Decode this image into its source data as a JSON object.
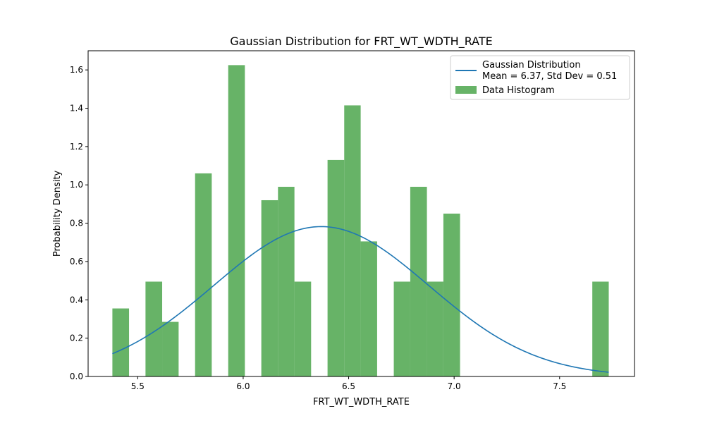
{
  "chart_data": {
    "type": "bar",
    "title": "Gaussian Distribution for FRT_WT_WDTH_RATE",
    "xlabel": "FRT_WT_WDTH_RATE",
    "ylabel": "Probability Density",
    "xlim": [
      5.265,
      7.855
    ],
    "ylim": [
      0,
      1.7
    ],
    "xticks": [
      5.5,
      6.0,
      6.5,
      7.0,
      7.5
    ],
    "xtick_labels": [
      "5.5",
      "6.0",
      "6.5",
      "7.0",
      "7.5"
    ],
    "yticks": [
      0.0,
      0.2,
      0.4,
      0.6,
      0.8,
      1.0,
      1.2,
      1.4,
      1.6
    ],
    "ytick_labels": [
      "0.0",
      "0.2",
      "0.4",
      "0.6",
      "0.8",
      "1.0",
      "1.2",
      "1.4",
      "1.6"
    ],
    "grid": false,
    "legend_position": "top-right",
    "histogram": {
      "name": "Data Histogram",
      "color": "#4ca64c",
      "bins": [
        {
          "x0": 5.38,
          "x1": 5.459,
          "value": 0.355
        },
        {
          "x0": 5.537,
          "x1": 5.616,
          "value": 0.495
        },
        {
          "x0": 5.616,
          "x1": 5.694,
          "value": 0.285
        },
        {
          "x0": 5.772,
          "x1": 5.851,
          "value": 1.06
        },
        {
          "x0": 5.929,
          "x1": 6.008,
          "value": 1.625
        },
        {
          "x0": 6.086,
          "x1": 6.165,
          "value": 0.92
        },
        {
          "x0": 6.165,
          "x1": 6.243,
          "value": 0.99
        },
        {
          "x0": 6.243,
          "x1": 6.322,
          "value": 0.495
        },
        {
          "x0": 6.4,
          "x1": 6.479,
          "value": 1.13
        },
        {
          "x0": 6.479,
          "x1": 6.557,
          "value": 1.415
        },
        {
          "x0": 6.557,
          "x1": 6.635,
          "value": 0.705
        },
        {
          "x0": 6.714,
          "x1": 6.792,
          "value": 0.495
        },
        {
          "x0": 6.792,
          "x1": 6.871,
          "value": 0.99
        },
        {
          "x0": 6.871,
          "x1": 6.949,
          "value": 0.495
        },
        {
          "x0": 6.949,
          "x1": 7.028,
          "value": 0.85
        },
        {
          "x0": 7.655,
          "x1": 7.733,
          "value": 0.495
        }
      ]
    },
    "series": [
      {
        "name": "Gaussian Distribution",
        "name_line2": "Mean = 6.37, Std Dev = 0.51",
        "type": "line",
        "color": "#1f77b4",
        "mean": 6.37,
        "std": 0.51,
        "x_range": [
          5.38,
          7.733
        ]
      }
    ]
  }
}
